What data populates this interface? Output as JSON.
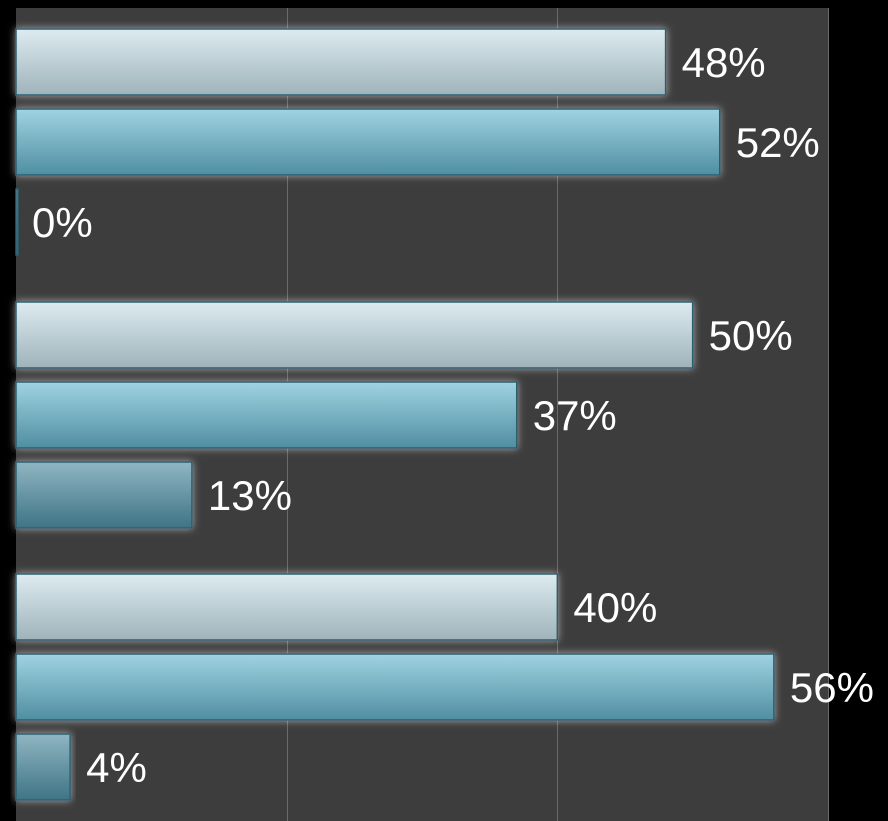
{
  "chart_data": {
    "type": "bar",
    "orientation": "horizontal",
    "xlim": [
      0,
      60
    ],
    "grid": true,
    "groups": [
      {
        "bars": [
          {
            "value": 48,
            "label": "48%",
            "shade": "light"
          },
          {
            "value": 52,
            "label": "52%",
            "shade": "medium"
          },
          {
            "value": 0,
            "label": "0%",
            "shade": "dark"
          }
        ]
      },
      {
        "bars": [
          {
            "value": 50,
            "label": "50%",
            "shade": "light"
          },
          {
            "value": 37,
            "label": "37%",
            "shade": "medium"
          },
          {
            "value": 13,
            "label": "13%",
            "shade": "dark"
          }
        ]
      },
      {
        "bars": [
          {
            "value": 40,
            "label": "40%",
            "shade": "light"
          },
          {
            "value": 56,
            "label": "56%",
            "shade": "medium"
          },
          {
            "value": 4,
            "label": "4%",
            "shade": "dark"
          }
        ]
      }
    ]
  },
  "colors": {
    "background": "#000000",
    "plot_area": "#3d3d3d",
    "gridline": "#6a6a6a",
    "label_text": "#ffffff",
    "light_top": "#dcebf0",
    "light_bottom": "#9fb3ba",
    "medium_top": "#9fd3e2",
    "medium_bottom": "#4f8ea0",
    "dark_top": "#8fb5c2",
    "dark_bottom": "#3f7485",
    "bar_stroke": "#2c5f70"
  }
}
